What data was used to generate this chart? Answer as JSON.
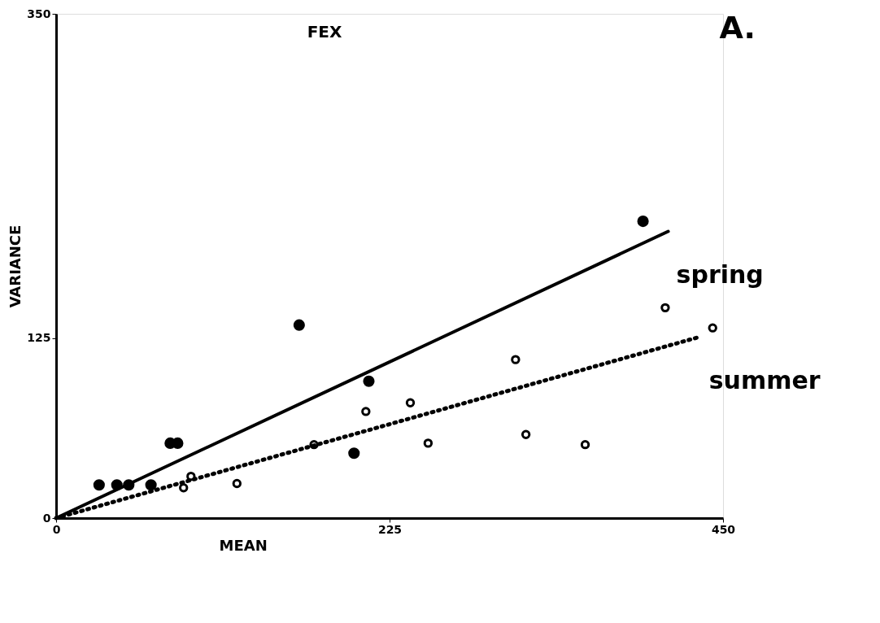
{
  "chart_data": {
    "type": "scatter",
    "title": "FEX",
    "xlabel": "MEAN",
    "ylabel": "VARIANCE",
    "xlim": [
      0,
      450
    ],
    "ylim": [
      0,
      350
    ],
    "xticks": [
      0,
      225,
      450
    ],
    "yticks": [
      0,
      125,
      350
    ],
    "annotations": [
      "A."
    ],
    "series": [
      {
        "marker": "circle",
        "color": "#000000",
        "x": [
          29,
          41,
          49,
          64,
          77,
          82,
          164,
          211,
          201,
          396
        ],
        "values": [
          23,
          23,
          23,
          23,
          52,
          52,
          134,
          95,
          45,
          206
        ]
      },
      {
        "marker": "circle",
        "color": "#000000",
        "x": [
          86,
          91,
          122,
          174,
          209,
          239,
          251,
          310,
          317,
          357,
          411,
          443
        ],
        "values": [
          21,
          29,
          24,
          51,
          74,
          80,
          52,
          110,
          58,
          51,
          146,
          132
        ]
      },
      {
        "type": "line",
        "name": "spring",
        "line_style": "solid",
        "color": "#000000",
        "x": [
          0,
          413
        ],
        "values": [
          0,
          199
        ]
      },
      {
        "type": "line",
        "name": "summer",
        "line_style": "dotted",
        "color": "#000000",
        "x": [
          0,
          435
        ],
        "values": [
          0,
          126
        ]
      }
    ]
  }
}
